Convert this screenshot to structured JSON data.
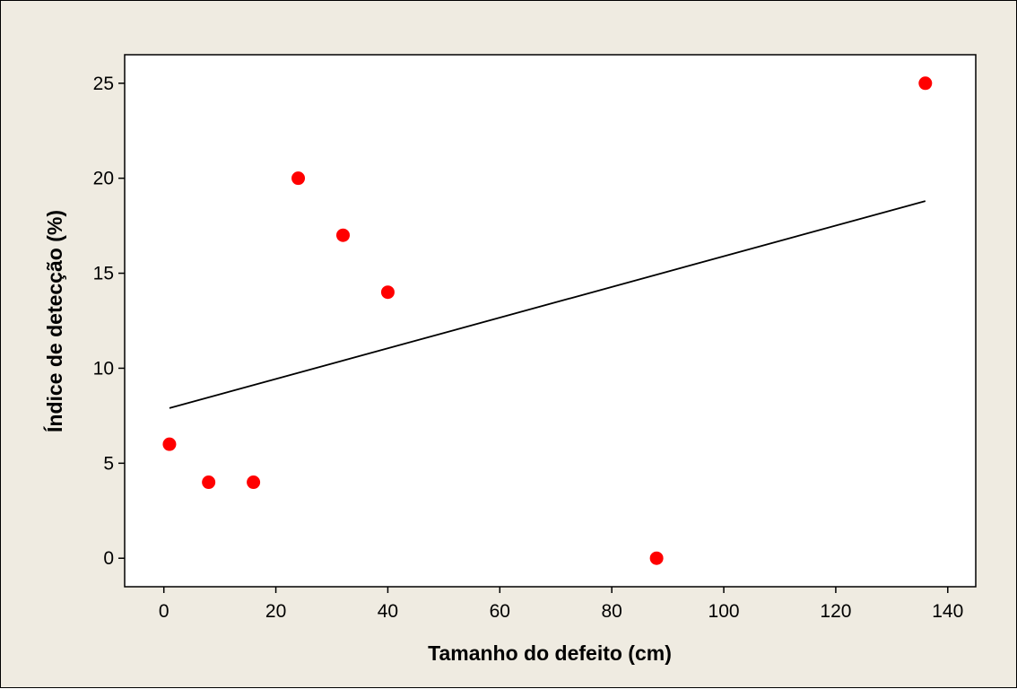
{
  "chart_data": {
    "type": "scatter",
    "title": "",
    "xlabel": "Tamanho do defeito (cm)",
    "ylabel": "Índice de detecção (%)",
    "xlim": [
      -7,
      145
    ],
    "ylim": [
      -1.5,
      26.5
    ],
    "xticks": [
      0,
      20,
      40,
      60,
      80,
      100,
      120,
      140
    ],
    "yticks": [
      0,
      5,
      10,
      15,
      20,
      25
    ],
    "series": [
      {
        "x": [
          1,
          8,
          16,
          24,
          32,
          40,
          88,
          136
        ],
        "y": [
          6,
          4,
          4,
          20,
          17,
          14,
          0,
          25
        ],
        "marker_color": "#ff0000"
      }
    ],
    "fit_line": {
      "x": [
        1,
        136
      ],
      "y": [
        7.9,
        18.8
      ],
      "color": "#000000"
    },
    "grid": false,
    "legend": "none",
    "plot_background": "#ffffff",
    "figure_background": "#efebe1"
  }
}
